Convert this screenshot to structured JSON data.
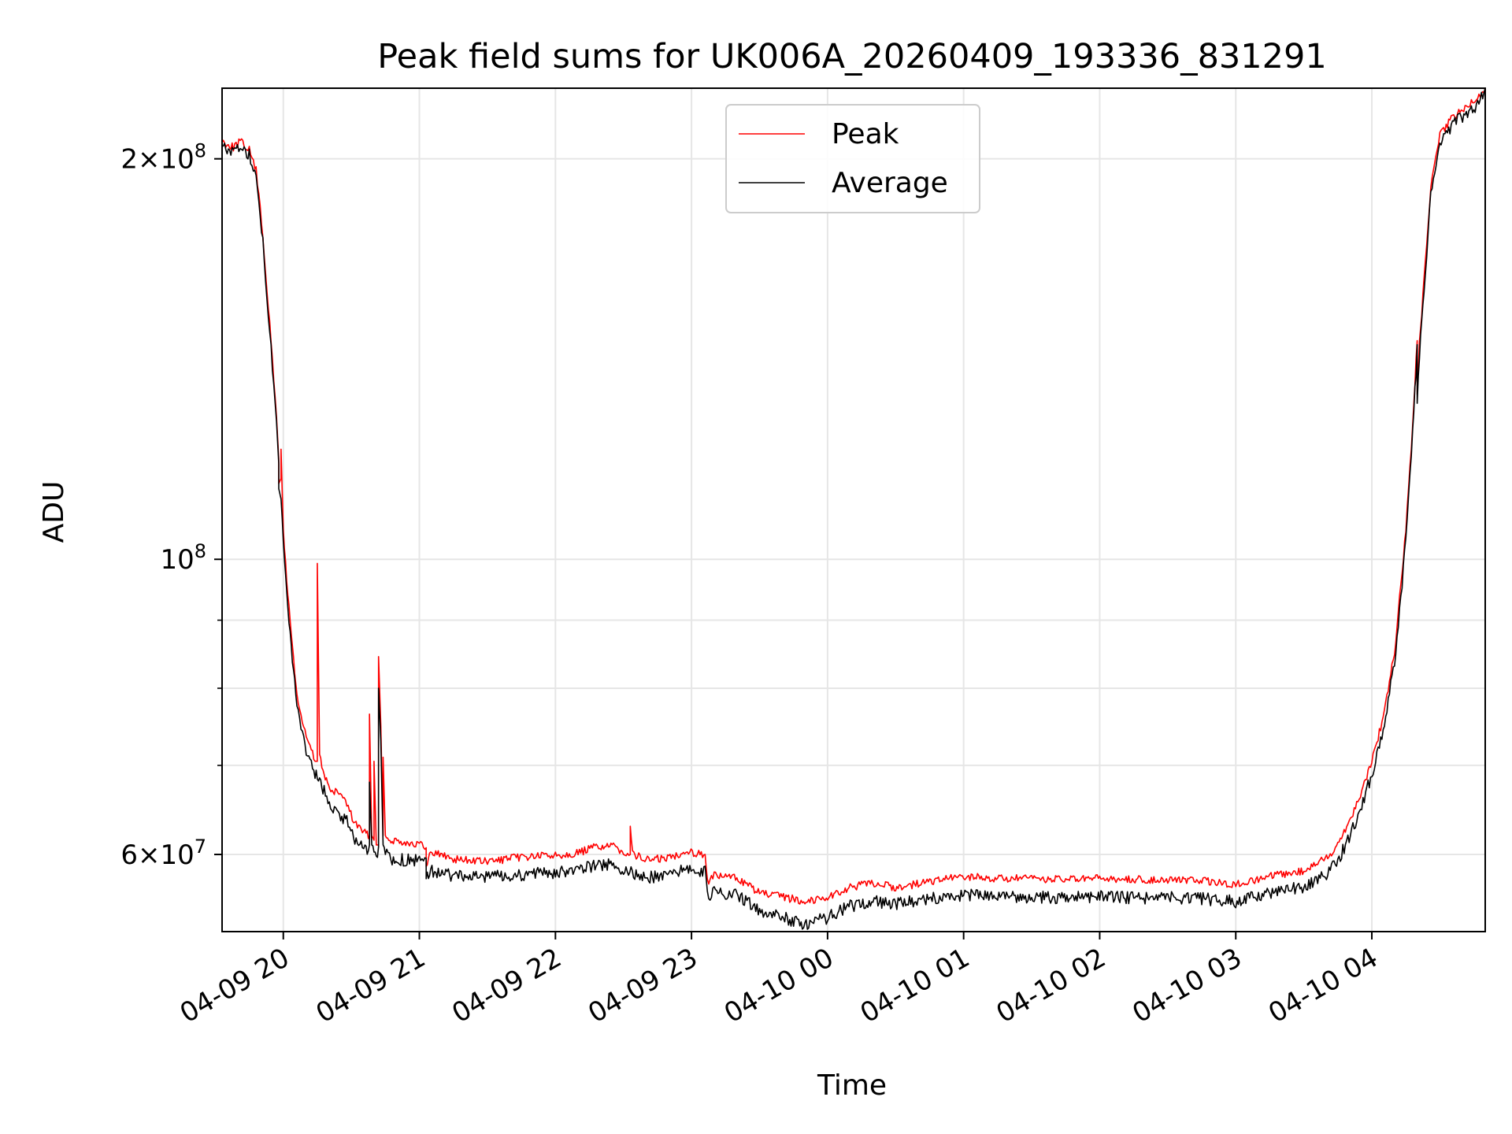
{
  "chart_data": {
    "type": "line",
    "title": "Peak field sums for UK006A_20260409_193336_831291",
    "xlabel": "Time",
    "ylabel": "ADU",
    "yscale": "log",
    "ylim": [
      52500000,
      226000000
    ],
    "xlim": [
      "2026-04-09 19:33",
      "2026-04-10 04:50"
    ],
    "grid": true,
    "legend_position": "upper center",
    "x_ticks": [
      {
        "t": "2026-04-09 20:00",
        "label": "04-09 20"
      },
      {
        "t": "2026-04-09 21:00",
        "label": "04-09 21"
      },
      {
        "t": "2026-04-09 22:00",
        "label": "04-09 22"
      },
      {
        "t": "2026-04-09 23:00",
        "label": "04-09 23"
      },
      {
        "t": "2026-04-10 00:00",
        "label": "04-10 00"
      },
      {
        "t": "2026-04-10 01:00",
        "label": "04-10 01"
      },
      {
        "t": "2026-04-10 02:00",
        "label": "04-10 02"
      },
      {
        "t": "2026-04-10 03:00",
        "label": "04-10 03"
      },
      {
        "t": "2026-04-10 04:00",
        "label": "04-10 04"
      }
    ],
    "y_major_ticks": [
      {
        "value": 60000000,
        "mantissa": "6",
        "exponent": "7"
      },
      {
        "value": 100000000,
        "mantissa": "",
        "exponent": "8"
      },
      {
        "value": 200000000,
        "mantissa": "2",
        "exponent": "8"
      }
    ],
    "y_minor_ticks": [
      70000000,
      80000000,
      90000000
    ],
    "series": [
      {
        "name": "Peak",
        "color": "#ff0000",
        "points": [
          [
            "2026-04-09 19:33",
            206000000
          ],
          [
            "2026-04-09 19:38",
            204000000
          ],
          [
            "2026-04-09 19:41",
            206000000
          ],
          [
            "2026-04-09 19:45",
            203000000
          ],
          [
            "2026-04-09 19:48",
            196000000
          ],
          [
            "2026-04-09 19:51",
            175000000
          ],
          [
            "2026-04-09 19:54",
            150000000
          ],
          [
            "2026-04-09 19:57",
            128000000
          ],
          [
            "2026-04-09 19:58",
            119000000
          ],
          [
            "2026-04-09 19:58",
            114000000
          ],
          [
            "2026-04-09 19:59",
            115000000
          ],
          [
            "2026-04-09 19:59",
            121000000
          ],
          [
            "2026-04-09 20:00",
            105000000
          ],
          [
            "2026-04-09 20:02",
            94000000
          ],
          [
            "2026-04-09 20:04",
            86000000
          ],
          [
            "2026-04-09 20:06",
            79000000
          ],
          [
            "2026-04-09 20:09",
            74500000
          ],
          [
            "2026-04-09 20:14",
            70500000
          ],
          [
            "2026-04-09 20:15",
            70500000
          ],
          [
            "2026-04-09 20:15",
            99300000
          ],
          [
            "2026-04-09 20:16",
            71000000
          ],
          [
            "2026-04-09 20:18",
            69000000
          ],
          [
            "2026-04-09 20:20",
            67500000
          ],
          [
            "2026-04-09 20:22",
            66500000
          ],
          [
            "2026-04-09 20:24",
            67000000
          ],
          [
            "2026-04-09 20:28",
            65500000
          ],
          [
            "2026-04-09 20:31",
            63500000
          ],
          [
            "2026-04-09 20:36",
            62200000
          ],
          [
            "2026-04-09 20:38",
            62000000
          ],
          [
            "2026-04-09 20:38",
            76500000
          ],
          [
            "2026-04-09 20:39",
            62000000
          ],
          [
            "2026-04-09 20:40",
            61500000
          ],
          [
            "2026-04-09 20:40",
            70500000
          ],
          [
            "2026-04-09 20:41",
            61000000
          ],
          [
            "2026-04-09 20:42",
            61000000
          ],
          [
            "2026-04-09 20:42",
            84500000
          ],
          [
            "2026-04-09 20:43",
            75000000
          ],
          [
            "2026-04-09 20:44",
            62000000
          ],
          [
            "2026-04-09 20:44",
            71000000
          ],
          [
            "2026-04-09 20:45",
            62000000
          ],
          [
            "2026-04-09 20:46",
            61500000
          ],
          [
            "2026-04-09 20:48",
            61500000
          ],
          [
            "2026-04-09 21:00",
            61000000
          ],
          [
            "2026-04-09 21:03",
            60700000
          ],
          [
            "2026-04-09 21:03",
            58500000
          ],
          [
            "2026-04-09 21:05",
            60300000
          ],
          [
            "2026-04-09 21:15",
            59500000
          ],
          [
            "2026-04-09 21:30",
            59200000
          ],
          [
            "2026-04-09 21:45",
            59700000
          ],
          [
            "2026-04-09 22:00",
            59900000
          ],
          [
            "2026-04-09 22:10",
            60100000
          ],
          [
            "2026-04-09 22:18",
            60800000
          ],
          [
            "2026-04-09 22:25",
            60800000
          ],
          [
            "2026-04-09 22:30",
            60300000
          ],
          [
            "2026-04-09 22:33",
            60000000
          ],
          [
            "2026-04-09 22:33",
            63000000
          ],
          [
            "2026-04-09 22:34",
            60000000
          ],
          [
            "2026-04-09 22:40",
            59400000
          ],
          [
            "2026-04-09 22:50",
            59600000
          ],
          [
            "2026-04-09 22:57",
            60300000
          ],
          [
            "2026-04-09 23:06",
            60000000
          ],
          [
            "2026-04-09 23:07",
            57200000
          ],
          [
            "2026-04-09 23:10",
            57800000
          ],
          [
            "2026-04-09 23:20",
            57600000
          ],
          [
            "2026-04-09 23:30",
            56100000
          ],
          [
            "2026-04-09 23:40",
            55700000
          ],
          [
            "2026-04-09 23:50",
            55300000
          ],
          [
            "2026-04-10 00:00",
            55700000
          ],
          [
            "2026-04-10 00:10",
            56600000
          ],
          [
            "2026-04-10 00:20",
            57100000
          ],
          [
            "2026-04-10 00:30",
            56600000
          ],
          [
            "2026-04-10 00:45",
            57200000
          ],
          [
            "2026-04-10 01:00",
            57700000
          ],
          [
            "2026-04-10 01:15",
            57500000
          ],
          [
            "2026-04-10 01:30",
            57500000
          ],
          [
            "2026-04-10 01:45",
            57400000
          ],
          [
            "2026-04-10 02:00",
            57500000
          ],
          [
            "2026-04-10 02:15",
            57400000
          ],
          [
            "2026-04-10 02:30",
            57400000
          ],
          [
            "2026-04-10 02:45",
            57300000
          ],
          [
            "2026-04-10 03:00",
            56900000
          ],
          [
            "2026-04-10 03:15",
            57700000
          ],
          [
            "2026-04-10 03:30",
            58300000
          ],
          [
            "2026-04-10 03:40",
            59600000
          ],
          [
            "2026-04-10 03:45",
            61000000
          ],
          [
            "2026-04-10 03:50",
            63500000
          ],
          [
            "2026-04-10 03:55",
            66500000
          ],
          [
            "2026-04-10 04:00",
            70500000
          ],
          [
            "2026-04-10 04:05",
            76000000
          ],
          [
            "2026-04-10 04:10",
            85000000
          ],
          [
            "2026-04-10 04:15",
            105000000
          ],
          [
            "2026-04-10 04:18",
            126000000
          ],
          [
            "2026-04-10 04:20",
            146000000
          ],
          [
            "2026-04-10 04:20",
            133000000
          ],
          [
            "2026-04-10 04:21",
            145000000
          ],
          [
            "2026-04-10 04:23",
            162000000
          ],
          [
            "2026-04-10 04:26",
            190000000
          ],
          [
            "2026-04-10 04:30",
            208000000
          ],
          [
            "2026-04-10 04:35",
            214000000
          ],
          [
            "2026-04-10 04:40",
            218000000
          ],
          [
            "2026-04-10 04:45",
            221000000
          ],
          [
            "2026-04-10 04:50",
            226000000
          ]
        ]
      },
      {
        "name": "Average",
        "color": "#000000",
        "points": [
          [
            "2026-04-09 19:33",
            206000000
          ],
          [
            "2026-04-09 19:38",
            204000000
          ],
          [
            "2026-04-09 19:41",
            206000000
          ],
          [
            "2026-04-09 19:45",
            203000000
          ],
          [
            "2026-04-09 19:48",
            196000000
          ],
          [
            "2026-04-09 19:51",
            175000000
          ],
          [
            "2026-04-09 19:54",
            150000000
          ],
          [
            "2026-04-09 19:57",
            127000000
          ],
          [
            "2026-04-09 19:58",
            118000000
          ],
          [
            "2026-04-09 19:58",
            113000000
          ],
          [
            "2026-04-09 19:59",
            111000000
          ],
          [
            "2026-04-09 20:00",
            104000000
          ],
          [
            "2026-04-09 20:02",
            93000000
          ],
          [
            "2026-04-09 20:04",
            85000000
          ],
          [
            "2026-04-09 20:06",
            78000000
          ],
          [
            "2026-04-09 20:09",
            73500000
          ],
          [
            "2026-04-09 20:14",
            69500000
          ],
          [
            "2026-04-09 20:16",
            68500000
          ],
          [
            "2026-04-09 20:18",
            67500000
          ],
          [
            "2026-04-09 20:22",
            65500000
          ],
          [
            "2026-04-09 20:28",
            64000000
          ],
          [
            "2026-04-09 20:31",
            62300000
          ],
          [
            "2026-04-09 20:36",
            61200000
          ],
          [
            "2026-04-09 20:38",
            61000000
          ],
          [
            "2026-04-09 20:38",
            68000000
          ],
          [
            "2026-04-09 20:39",
            61000000
          ],
          [
            "2026-04-09 20:40",
            60800000
          ],
          [
            "2026-04-09 20:42",
            60800000
          ],
          [
            "2026-04-09 20:42",
            80000000
          ],
          [
            "2026-04-09 20:43",
            73000000
          ],
          [
            "2026-04-09 20:44",
            61000000
          ],
          [
            "2026-04-09 20:45",
            60500000
          ],
          [
            "2026-04-09 20:48",
            60000000
          ],
          [
            "2026-04-09 21:00",
            59800000
          ],
          [
            "2026-04-09 21:03",
            59600000
          ],
          [
            "2026-04-09 21:03",
            57800000
          ],
          [
            "2026-04-09 21:05",
            58800000
          ],
          [
            "2026-04-09 21:15",
            58300000
          ],
          [
            "2026-04-09 21:30",
            58100000
          ],
          [
            "2026-04-09 21:45",
            58400000
          ],
          [
            "2026-04-09 22:00",
            58600000
          ],
          [
            "2026-04-09 22:10",
            58800000
          ],
          [
            "2026-04-09 22:18",
            59400000
          ],
          [
            "2026-04-09 22:25",
            59400000
          ],
          [
            "2026-04-09 22:30",
            58900000
          ],
          [
            "2026-04-09 22:40",
            58100000
          ],
          [
            "2026-04-09 22:50",
            58300000
          ],
          [
            "2026-04-09 22:57",
            58900000
          ],
          [
            "2026-04-09 23:06",
            58800000
          ],
          [
            "2026-04-09 23:07",
            56200000
          ],
          [
            "2026-04-09 23:10",
            56700000
          ],
          [
            "2026-04-09 23:20",
            56400000
          ],
          [
            "2026-04-09 23:30",
            54800000
          ],
          [
            "2026-04-09 23:40",
            54200000
          ],
          [
            "2026-04-09 23:50",
            53600000
          ],
          [
            "2026-04-10 00:00",
            54200000
          ],
          [
            "2026-04-10 00:10",
            55300000
          ],
          [
            "2026-04-10 00:20",
            55800000
          ],
          [
            "2026-04-10 00:30",
            55500000
          ],
          [
            "2026-04-10 00:45",
            56000000
          ],
          [
            "2026-04-10 01:00",
            56400000
          ],
          [
            "2026-04-10 01:15",
            56200000
          ],
          [
            "2026-04-10 01:30",
            56200000
          ],
          [
            "2026-04-10 01:45",
            56100000
          ],
          [
            "2026-04-10 02:00",
            56200000
          ],
          [
            "2026-04-10 02:15",
            56100000
          ],
          [
            "2026-04-10 02:30",
            56100000
          ],
          [
            "2026-04-10 02:45",
            56000000
          ],
          [
            "2026-04-10 03:00",
            55700000
          ],
          [
            "2026-04-10 03:15",
            56500000
          ],
          [
            "2026-04-10 03:30",
            57200000
          ],
          [
            "2026-04-10 03:40",
            58400000
          ],
          [
            "2026-04-10 03:45",
            59800000
          ],
          [
            "2026-04-10 03:50",
            62300000
          ],
          [
            "2026-04-10 03:55",
            65400000
          ],
          [
            "2026-04-10 04:00",
            69500000
          ],
          [
            "2026-04-10 04:05",
            75000000
          ],
          [
            "2026-04-10 04:10",
            84000000
          ],
          [
            "2026-04-10 04:15",
            104000000
          ],
          [
            "2026-04-10 04:18",
            125000000
          ],
          [
            "2026-04-10 04:20",
            145000000
          ],
          [
            "2026-04-10 04:20",
            131000000
          ],
          [
            "2026-04-10 04:21",
            144000000
          ],
          [
            "2026-04-10 04:23",
            161000000
          ],
          [
            "2026-04-10 04:26",
            189000000
          ],
          [
            "2026-04-10 04:30",
            207000000
          ],
          [
            "2026-04-10 04:35",
            213000000
          ],
          [
            "2026-04-10 04:40",
            217000000
          ],
          [
            "2026-04-10 04:45",
            220000000
          ],
          [
            "2026-04-10 04:50",
            226000000
          ]
        ]
      }
    ]
  }
}
